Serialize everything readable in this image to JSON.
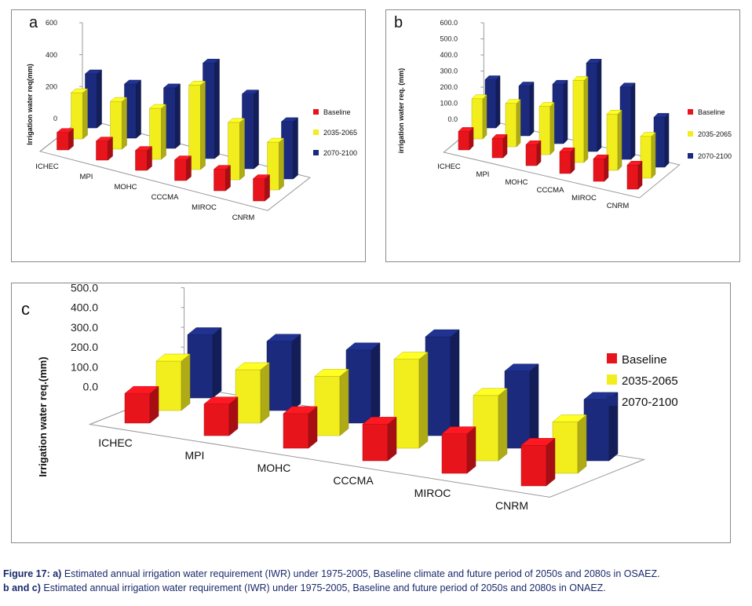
{
  "legend_colors": {
    "baseline": "#e8141c",
    "mid": "#f2ee1e",
    "late": "#1b2a7c"
  },
  "chart_data": [
    {
      "type": "bar",
      "panel_letter": "a",
      "categories": [
        "ICHEC",
        "MPI",
        "MOHC",
        "CCCMA",
        "MIROC",
        "CNRM"
      ],
      "series": [
        {
          "name": "Baseline",
          "values": [
            110,
            120,
            125,
            130,
            135,
            140
          ]
        },
        {
          "name": "2035-2065",
          "values": [
            290,
            300,
            320,
            530,
            360,
            300
          ]
        },
        {
          "name": "2070-2100",
          "values": [
            340,
            340,
            380,
            600,
            470,
            360
          ]
        }
      ],
      "ylabel": "Irrigation water req(mm)",
      "yticks": [
        "0",
        "200",
        "400",
        "600"
      ],
      "ylim": [
        0,
        600
      ],
      "legend_position": "right"
    },
    {
      "type": "bar",
      "panel_letter": "b",
      "categories": [
        "ICHEC",
        "MPI",
        "MOHC",
        "CCCMA",
        "MIROC",
        "CNRM"
      ],
      "series": [
        {
          "name": "Baseline",
          "values": [
            115,
            120,
            130,
            135,
            140,
            150
          ]
        },
        {
          "name": "2035-2065",
          "values": [
            250,
            270,
            300,
            510,
            350,
            260
          ]
        },
        {
          "name": "2070-2100",
          "values": [
            300,
            310,
            370,
            550,
            450,
            310
          ]
        }
      ],
      "ylabel": "irrigation water req. (mm)",
      "yticks": [
        "0.0",
        "100.0",
        "200.0",
        "300.0",
        "400.0",
        "500.0",
        "600.0"
      ],
      "ylim": [
        0,
        600
      ],
      "legend_position": "right"
    },
    {
      "type": "bar",
      "panel_letter": "c",
      "categories": [
        "ICHEC",
        "MPI",
        "MOHC",
        "CCCMA",
        "MIROC",
        "CNRM"
      ],
      "series": [
        {
          "name": "Baseline",
          "values": [
            150,
            160,
            175,
            185,
            200,
            205
          ]
        },
        {
          "name": "2035-2065",
          "values": [
            250,
            270,
            300,
            450,
            330,
            260
          ]
        },
        {
          "name": "2070-2100",
          "values": [
            320,
            350,
            370,
            500,
            390,
            310
          ]
        }
      ],
      "ylabel": "Irrigation water req.(mm)",
      "yticks": [
        "0.0",
        "100.0",
        "200.0",
        "300.0",
        "400.0",
        "500.0"
      ],
      "ylim": [
        0,
        500
      ],
      "legend_position": "right"
    }
  ],
  "caption": {
    "label": "Figure 17:",
    "part_a_label": "a)",
    "line1_text": "Estimated annual irrigation water requirement (IWR) under 1975-2005, Baseline climate and future period of 2050s and 2080s in OSAEZ.",
    "part_bc_label": "b and c)",
    "line2_text": "Estimated annual irrigation water requirement (IWR) under 1975-2005, Baseline and future period of 2050s and 2080s in ONAEZ."
  }
}
